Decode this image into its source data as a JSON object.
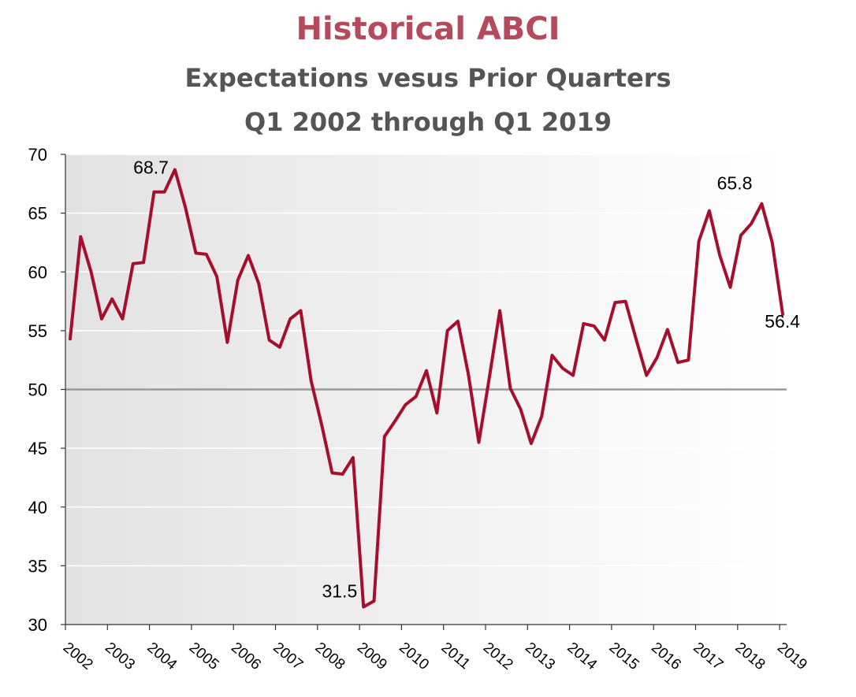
{
  "chart_data": {
    "type": "line",
    "title": "Historical ABCI",
    "subtitle_1": "Expectations vesus Prior Quarters",
    "subtitle_2": "Q1 2002 through Q1 2019",
    "xlabel": "",
    "ylabel": "",
    "ylim": [
      30,
      70
    ],
    "yticks": [
      "30",
      "35",
      "40",
      "45",
      "50",
      "55",
      "60",
      "65",
      "70"
    ],
    "xticks": [
      "2002",
      "2003",
      "2004",
      "2005",
      "2006",
      "2007",
      "2008",
      "2009",
      "2010",
      "2011",
      "2012",
      "2013",
      "2014",
      "2015",
      "2016",
      "2017",
      "2018",
      "2019"
    ],
    "reference_line": 50,
    "grid": true,
    "line_color": "#a50f2d",
    "series": [
      {
        "values": [
          54.3,
          63.0,
          60.0,
          56.0,
          57.7,
          56.0,
          60.7,
          60.8,
          66.8,
          66.8,
          68.7,
          65.5,
          61.6,
          61.5,
          59.6,
          54.0,
          59.3,
          61.4,
          59.0,
          54.2,
          53.6,
          56.0,
          56.7,
          50.7,
          47.0,
          42.9,
          42.8,
          44.2,
          31.5,
          32.0,
          46.0,
          47.3,
          48.7,
          49.4,
          51.6,
          48.0,
          55.0,
          55.8,
          51.3,
          45.5,
          51.0,
          56.7,
          50.1,
          48.3,
          45.4,
          47.7,
          52.9,
          51.8,
          51.2,
          55.6,
          55.4,
          54.2,
          57.4,
          57.5,
          54.3,
          51.2,
          52.7,
          55.1,
          52.3,
          52.5,
          62.6,
          65.2,
          61.4,
          58.7,
          63.1,
          64.1,
          65.8,
          62.5,
          56.4
        ]
      }
    ],
    "annotations": [
      {
        "label": "68.7",
        "index": 10
      },
      {
        "label": "31.5",
        "index": 28
      },
      {
        "label": "65.8",
        "index": 66
      },
      {
        "label": "56.4",
        "index": 68
      }
    ]
  }
}
